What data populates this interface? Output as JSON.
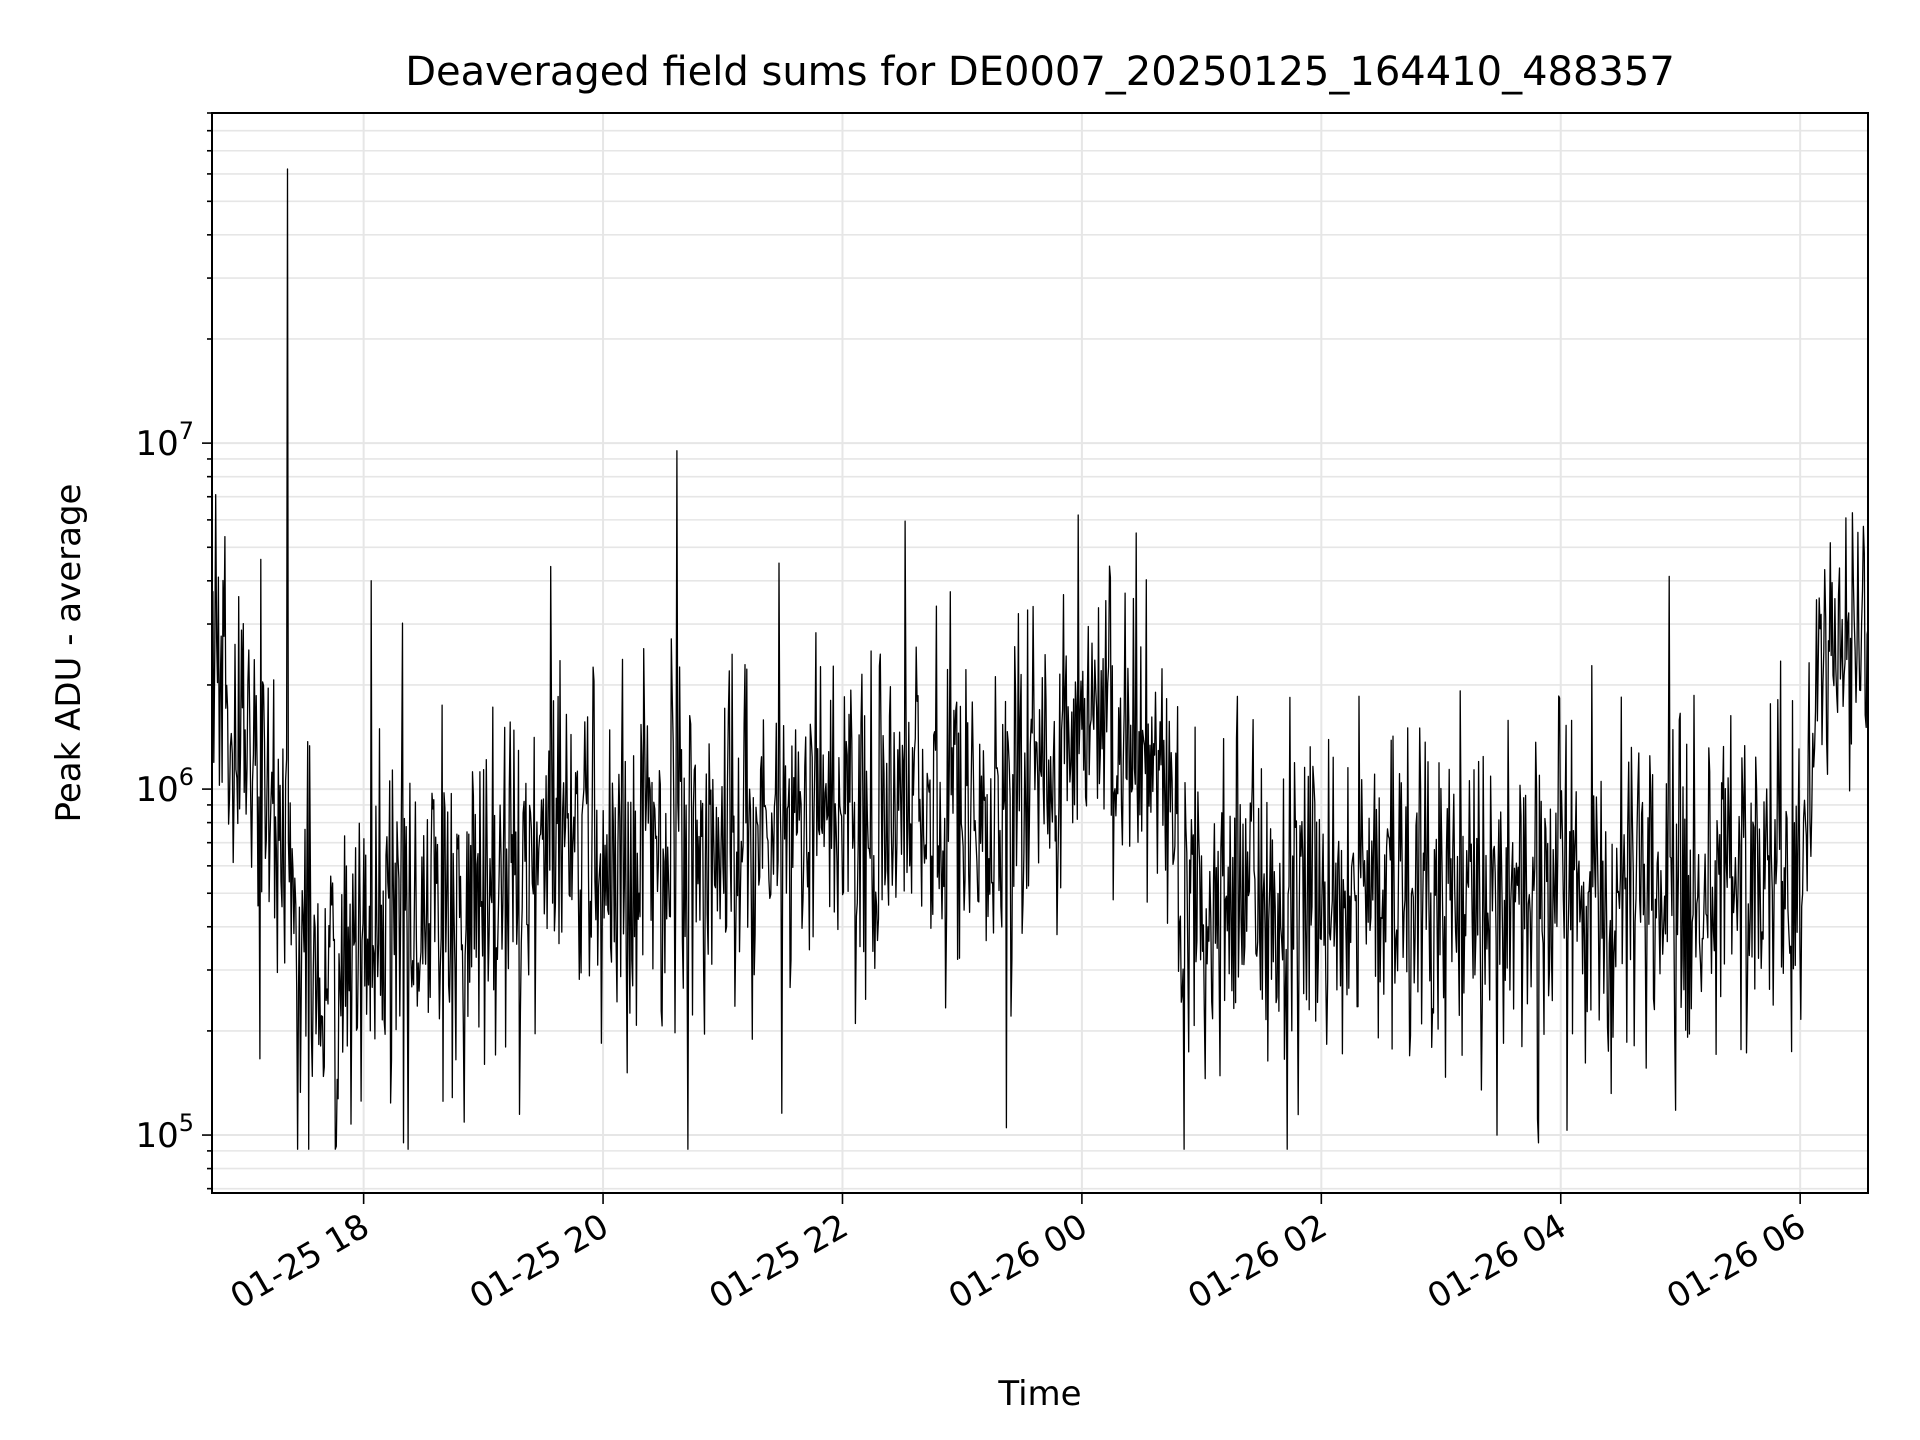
{
  "chart_data": {
    "type": "line",
    "title": "Deaveraged field sums for DE0007_20250125_164410_488357",
    "xlabel": "Time",
    "ylabel": "Peak ADU - average",
    "yscale": "log",
    "ylim": [
      68000,
      90000000
    ],
    "xlim": [
      "2025-01-25 16:44",
      "2025-01-26 06:34"
    ],
    "grid": true,
    "legend": "none",
    "line_color": "#000000",
    "grid_color": "#e6e6e6",
    "x_ticks": [
      {
        "value": "2025-01-25 18:00",
        "label": "01-25 18"
      },
      {
        "value": "2025-01-25 20:00",
        "label": "01-25 20"
      },
      {
        "value": "2025-01-25 22:00",
        "label": "01-25 22"
      },
      {
        "value": "2025-01-26 00:00",
        "label": "01-26 00"
      },
      {
        "value": "2025-01-26 02:00",
        "label": "01-26 02"
      },
      {
        "value": "2025-01-26 04:00",
        "label": "01-26 04"
      },
      {
        "value": "2025-01-26 06:00",
        "label": "01-26 06"
      }
    ],
    "y_ticks": [
      {
        "value": 100000,
        "label": "10",
        "exp": "5"
      },
      {
        "value": 1000000,
        "label": "10",
        "exp": "6"
      },
      {
        "value": 10000000,
        "label": "10",
        "exp": "7"
      }
    ],
    "series": [
      {
        "x": [
          "2025-01-25 16:44",
          "2025-01-25 16:50",
          "2025-01-25 17:00",
          "2025-01-25 17:10",
          "2025-01-25 17:20",
          "2025-01-25 17:30",
          "2025-01-25 17:40",
          "2025-01-25 18:00",
          "2025-01-25 18:20",
          "2025-01-25 18:40",
          "2025-01-25 19:00",
          "2025-01-25 19:30",
          "2025-01-25 20:00",
          "2025-01-25 20:30",
          "2025-01-25 21:00",
          "2025-01-25 21:30",
          "2025-01-25 22:00",
          "2025-01-25 22:30",
          "2025-01-25 23:00",
          "2025-01-25 23:30",
          "2025-01-25 23:50",
          "2025-01-26 00:10",
          "2025-01-26 00:30",
          "2025-01-26 00:40",
          "2025-01-26 00:50",
          "2025-01-26 01:10",
          "2025-01-26 01:30",
          "2025-01-26 02:00",
          "2025-01-26 02:30",
          "2025-01-26 03:00",
          "2025-01-26 03:30",
          "2025-01-26 04:00",
          "2025-01-26 04:30",
          "2025-01-26 05:00",
          "2025-01-26 05:30",
          "2025-01-26 06:00",
          "2025-01-26 06:10",
          "2025-01-26 06:20",
          "2025-01-26 06:34"
        ],
        "y": [
          2000000,
          1800000,
          1500000,
          1200000,
          600000,
          320000,
          300000,
          330000,
          380000,
          400000,
          550000,
          650000,
          650000,
          700000,
          750000,
          800000,
          800000,
          820000,
          850000,
          1000000,
          1300000,
          1500000,
          1400000,
          1300000,
          550000,
          450000,
          480000,
          500000,
          520000,
          520000,
          510000,
          500000,
          500000,
          520000,
          550000,
          520000,
          2000000,
          2600000,
          2800000
        ],
        "spread": [
          0.45,
          0.45,
          0.45,
          0.5,
          0.5,
          0.5,
          0.45,
          0.45,
          0.5,
          0.45,
          0.45,
          0.45,
          0.45,
          0.45,
          0.45,
          0.45,
          0.45,
          0.45,
          0.45,
          0.45,
          0.45,
          0.45,
          0.45,
          0.45,
          0.5,
          0.45,
          0.45,
          0.45,
          0.45,
          0.45,
          0.45,
          0.45,
          0.45,
          0.45,
          0.45,
          0.45,
          0.3,
          0.3,
          0.3
        ]
      }
    ],
    "spikes": [
      {
        "x": "2025-01-25 17:22",
        "y": 62000000
      },
      {
        "x": "2025-01-25 20:37",
        "y": 9500000
      },
      {
        "x": "2025-01-25 23:58",
        "y": 6200000
      },
      {
        "x": "2025-01-25 19:34",
        "y": 4400000
      },
      {
        "x": "2025-01-25 21:28",
        "y": 4500000
      },
      {
        "x": "2025-01-25 18:04",
        "y": 4000000
      },
      {
        "x": "2025-01-26 00:27",
        "y": 5500000
      },
      {
        "x": "2025-01-25 18:20",
        "y": 95000
      },
      {
        "x": "2025-01-25 23:22",
        "y": 105000
      },
      {
        "x": "2025-01-26 03:49",
        "y": 95000
      },
      {
        "x": "2025-01-26 03:28",
        "y": 100000
      }
    ]
  }
}
